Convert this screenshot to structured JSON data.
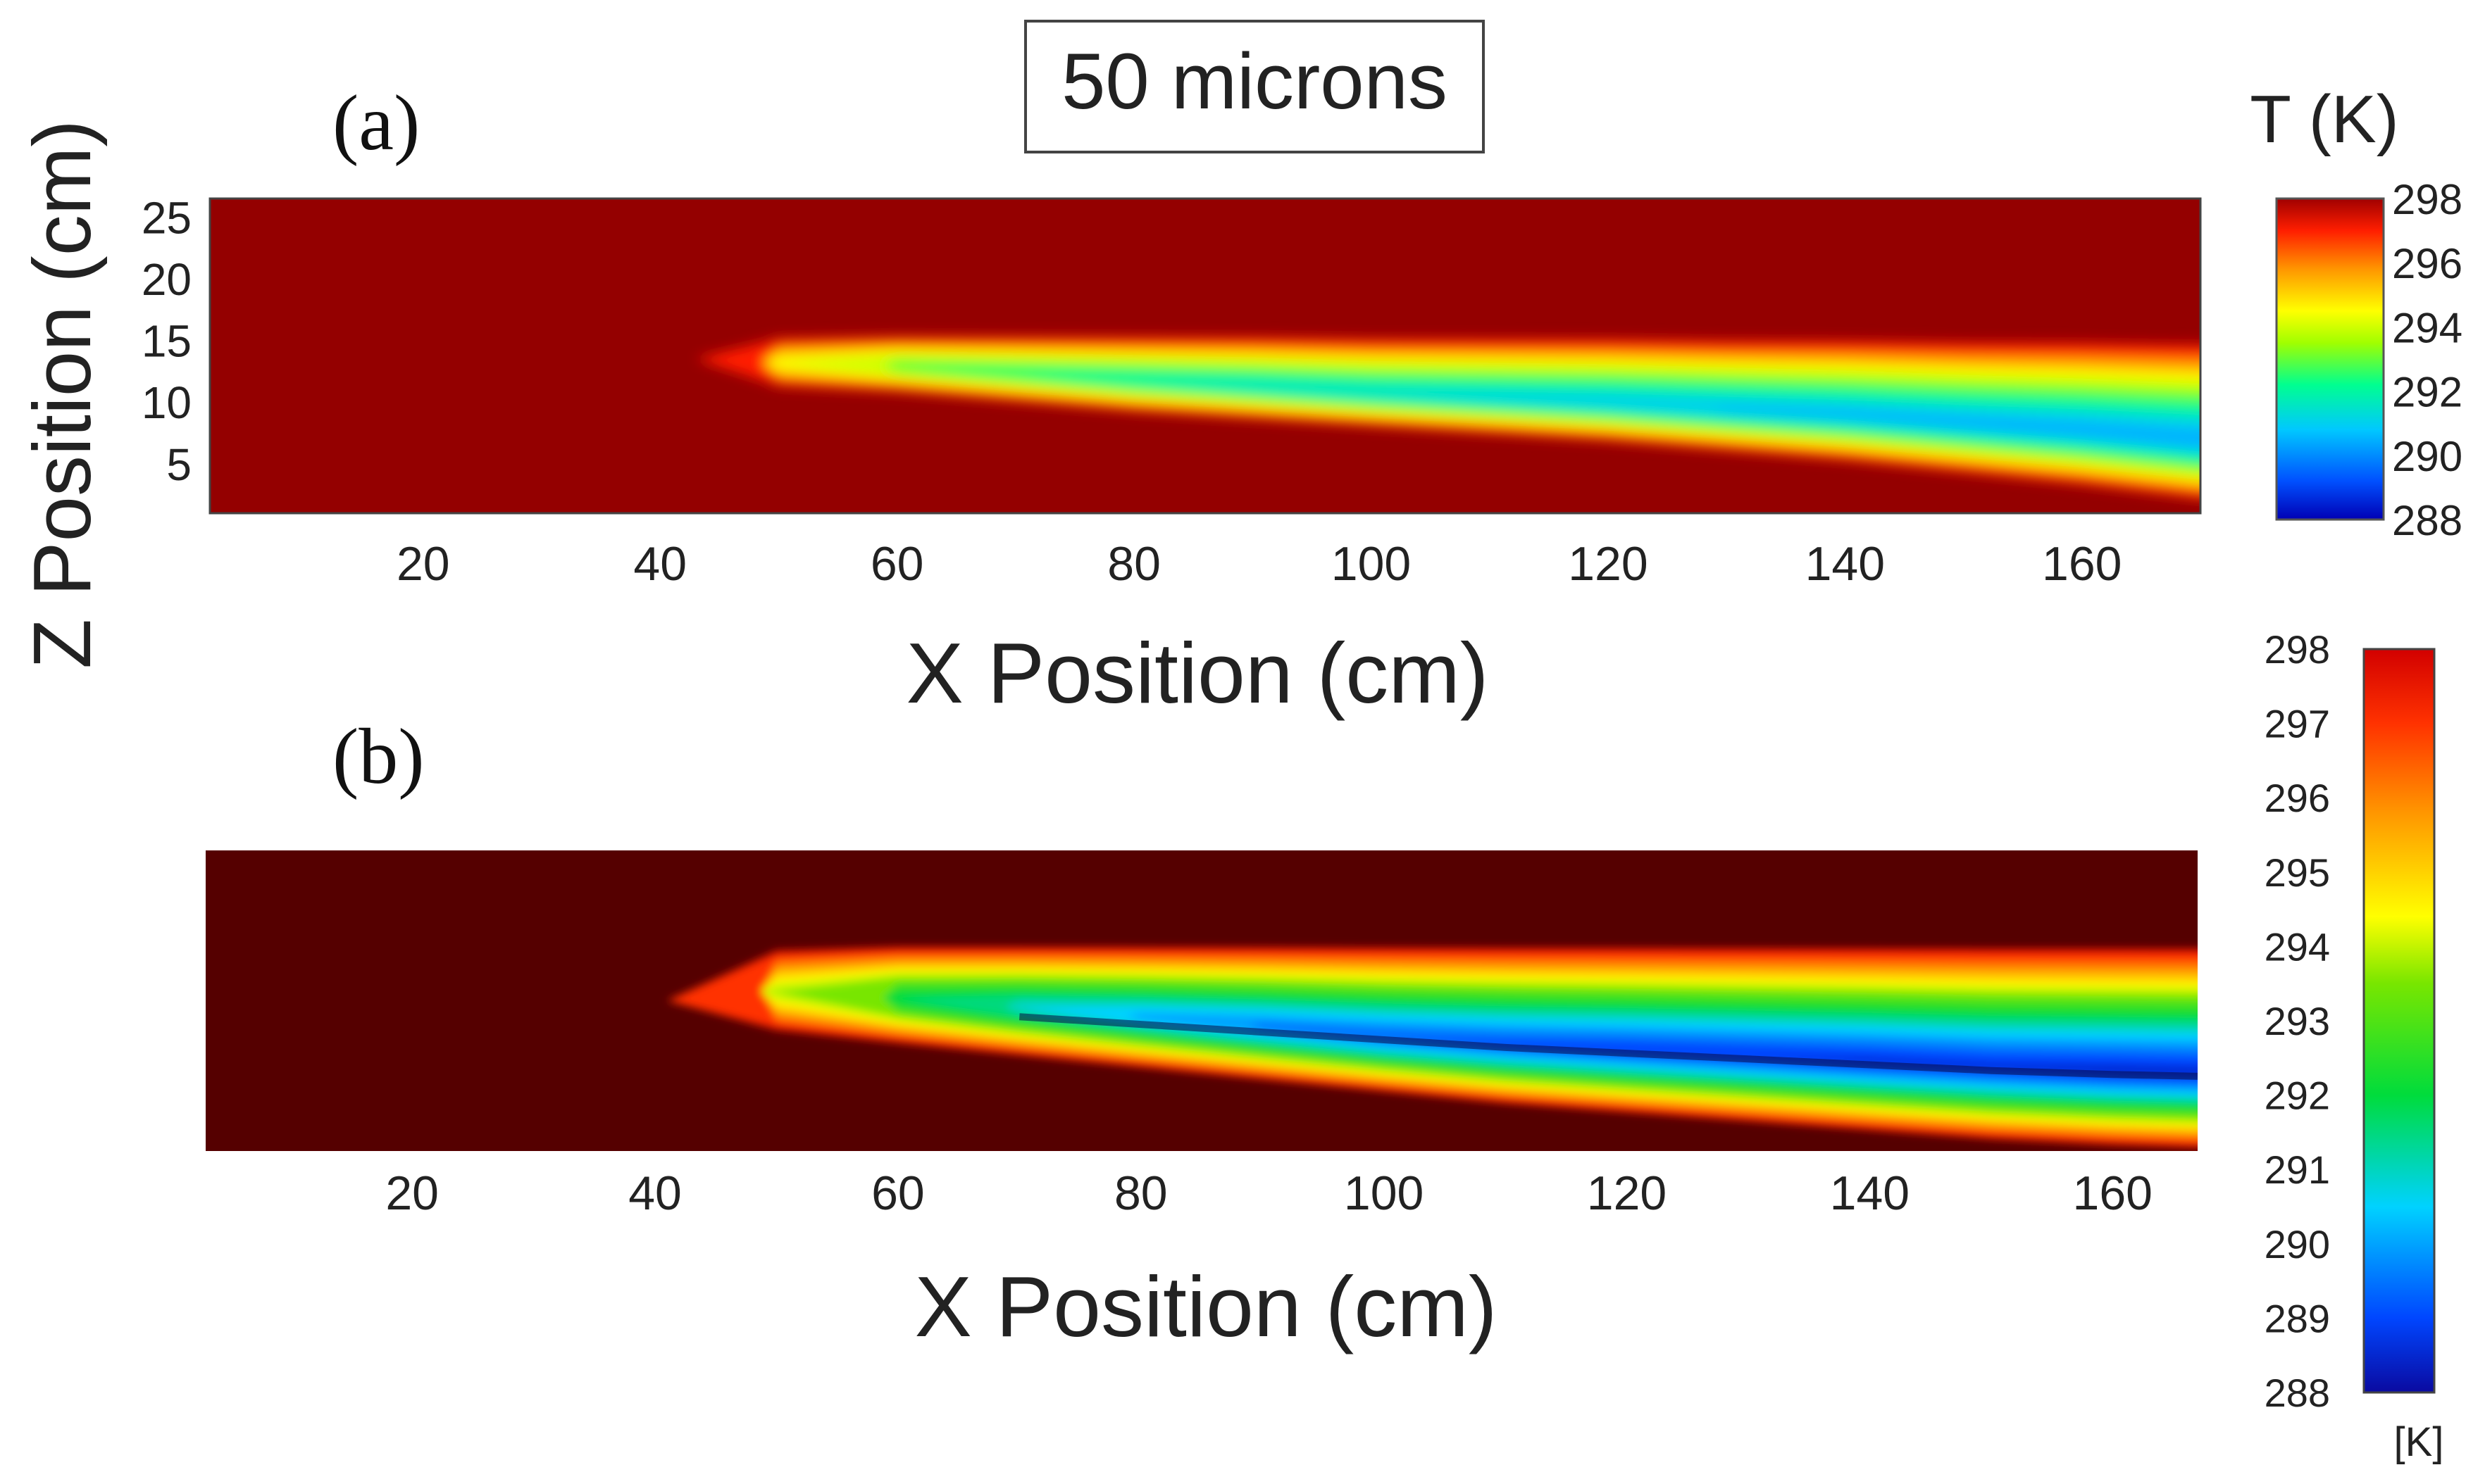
{
  "figure": {
    "title_box": "50 microns"
  },
  "chart_data": [
    {
      "type": "heatmap",
      "panel_label": "(a)",
      "xlabel": "X Position (cm)",
      "ylabel": "Z Position (cm)",
      "x_ticks": [
        20,
        40,
        60,
        80,
        100,
        120,
        140,
        160
      ],
      "y_ticks": [
        5,
        10,
        15,
        20,
        25
      ],
      "xlim": [
        2,
        170
      ],
      "ylim": [
        1,
        26.5
      ],
      "colorbar": {
        "title": "T (K)",
        "min": 288,
        "max": 298,
        "ticks": [
          298,
          296,
          294,
          292,
          290,
          288
        ]
      },
      "ambient_temperature": 298,
      "plume": {
        "x": [
          43,
          50,
          60,
          70,
          80,
          90,
          100,
          110,
          120,
          130,
          140,
          150,
          160,
          170
        ],
        "z_top": [
          13.5,
          15.5,
          15.6,
          15.6,
          15.6,
          15.6,
          15.5,
          15.5,
          15.5,
          15.4,
          15.4,
          15.3,
          15.3,
          15.2
        ],
        "z_bottom": [
          13.5,
          11.0,
          10.6,
          9.8,
          9.0,
          8.4,
          7.8,
          7.2,
          6.6,
          5.8,
          5.0,
          4.0,
          3.0,
          1.8
        ],
        "min_temperature": [
          297,
          294,
          292.5,
          292,
          291.5,
          291.2,
          291,
          290.8,
          290.6,
          290.4,
          290.3,
          290.2,
          290.1,
          290.0
        ]
      }
    },
    {
      "type": "heatmap",
      "panel_label": "(b)",
      "xlabel": "X Position (cm)",
      "x_ticks": [
        20,
        40,
        60,
        80,
        100,
        120,
        140,
        160
      ],
      "xlim": [
        3,
        167
      ],
      "colorbar": {
        "unit": "[K]",
        "min": 288,
        "max": 298,
        "ticks": [
          298,
          297,
          296,
          295,
          294,
          293,
          292,
          291,
          290,
          289,
          288
        ]
      },
      "ambient_temperature": 298,
      "plume": {
        "x": [
          41,
          50,
          60,
          70,
          80,
          90,
          100,
          110,
          120,
          130,
          140,
          150,
          160,
          167
        ],
        "z_top": [
          0.5,
          0.68,
          0.69,
          0.69,
          0.69,
          0.69,
          0.69,
          0.69,
          0.69,
          0.69,
          0.69,
          0.69,
          0.69,
          0.69
        ],
        "z_bottom": [
          0.5,
          0.39,
          0.35,
          0.31,
          0.27,
          0.23,
          0.19,
          0.15,
          0.12,
          0.09,
          0.06,
          0.03,
          0.01,
          0.0
        ],
        "min_temperature": [
          297,
          293.5,
          291.5,
          290.5,
          289.8,
          289.3,
          289.0,
          288.8,
          288.6,
          288.5,
          288.4,
          288.4,
          288.3,
          288.3
        ]
      }
    }
  ]
}
